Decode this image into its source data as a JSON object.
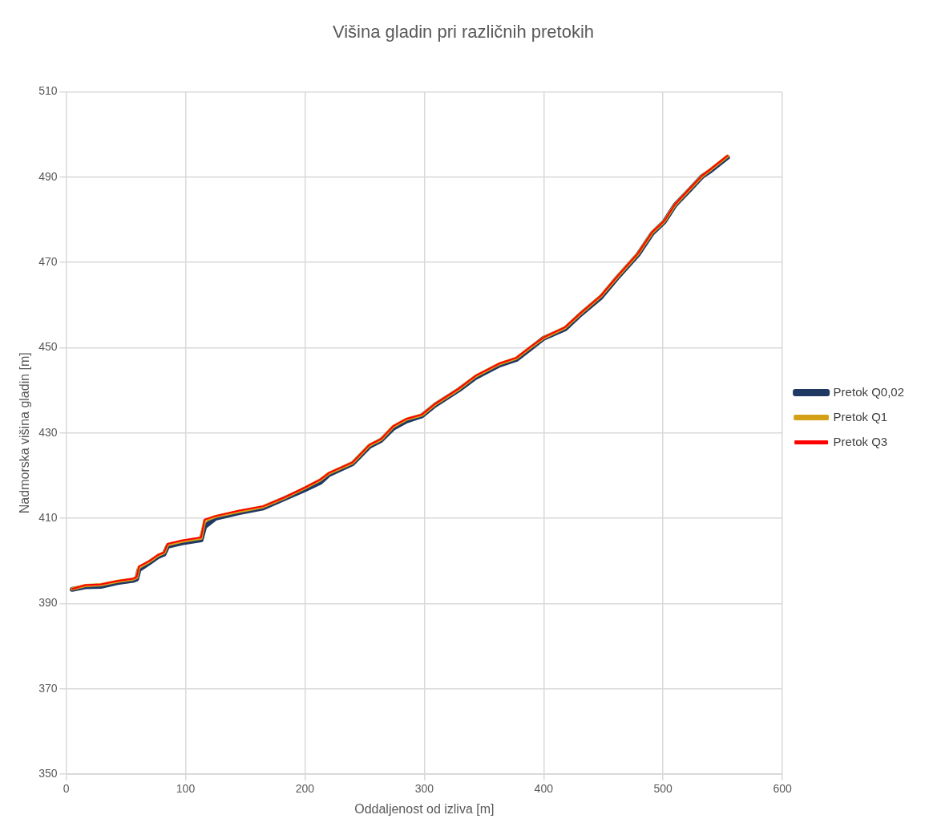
{
  "chart_data": {
    "type": "line",
    "title": "Višina gladin pri različnih pretokih",
    "xlabel": "Oddaljenost od izliva [m]",
    "ylabel": "Nadmorska višina gladin [m]",
    "x": [
      5,
      16,
      29,
      43,
      56,
      59,
      61,
      70,
      77,
      82,
      85,
      97,
      113,
      116,
      125,
      145,
      165,
      183,
      200,
      213,
      220,
      240,
      254,
      264,
      274,
      285,
      298,
      309,
      329,
      343,
      363,
      377,
      390,
      400,
      418,
      431,
      448,
      462,
      479,
      491,
      501,
      510,
      523,
      533,
      540,
      554
    ],
    "series": [
      {
        "name": "Pretok Q0,02",
        "color": "#1f3864",
        "values": [
          393.3,
          393.9,
          394.0,
          394.9,
          395.4,
          395.7,
          397.9,
          399.6,
          401.0,
          401.6,
          403.4,
          404.2,
          404.9,
          408.0,
          410.0,
          411.3,
          412.4,
          414.6,
          416.7,
          418.4,
          420.2,
          422.8,
          426.8,
          428.3,
          431.1,
          432.8,
          434.0,
          436.5,
          440.1,
          443.0,
          445.9,
          447.2,
          450.0,
          452.2,
          454.4,
          457.8,
          461.8,
          466.5,
          471.8,
          476.8,
          479.5,
          483.4,
          487.2,
          490.2,
          491.5,
          494.6
        ]
      },
      {
        "name": "Pretok Q1",
        "color": "#d4a017",
        "values": [
          393.4,
          394.2,
          394.4,
          395.2,
          395.7,
          396.1,
          398.5,
          399.9,
          401.3,
          401.9,
          403.8,
          404.6,
          405.3,
          409.4,
          410.4,
          411.6,
          412.7,
          414.8,
          417.1,
          419.0,
          420.5,
          423.0,
          427.1,
          428.5,
          431.5,
          433.2,
          434.2,
          436.7,
          440.3,
          443.3,
          446.2,
          447.5,
          450.3,
          452.3,
          454.7,
          458.0,
          462.1,
          466.7,
          472.0,
          477.0,
          479.6,
          483.5,
          487.4,
          490.3,
          491.8,
          494.9
        ]
      },
      {
        "name": "Pretok Q3",
        "color": "#ff0000",
        "values": [
          393.4,
          394.3,
          394.5,
          395.3,
          395.8,
          396.2,
          398.7,
          400.0,
          401.4,
          402.0,
          404.0,
          404.8,
          405.5,
          409.7,
          410.5,
          411.8,
          412.8,
          414.9,
          417.2,
          419.1,
          420.6,
          423.1,
          427.2,
          428.6,
          431.6,
          433.3,
          434.3,
          436.8,
          440.4,
          443.4,
          446.3,
          447.6,
          450.4,
          452.4,
          454.8,
          458.1,
          462.2,
          466.8,
          472.1,
          477.1,
          479.7,
          483.6,
          487.5,
          490.4,
          491.9,
          495.0
        ]
      }
    ],
    "xlim": [
      0,
      600
    ],
    "xticks": [
      0,
      100,
      200,
      300,
      400,
      500,
      600
    ],
    "ylim": [
      350,
      510
    ],
    "yticks": [
      350,
      370,
      390,
      410,
      430,
      450,
      470,
      490,
      510
    ],
    "grid": true,
    "legend": "right",
    "marker": "none",
    "line_style": "solid"
  }
}
